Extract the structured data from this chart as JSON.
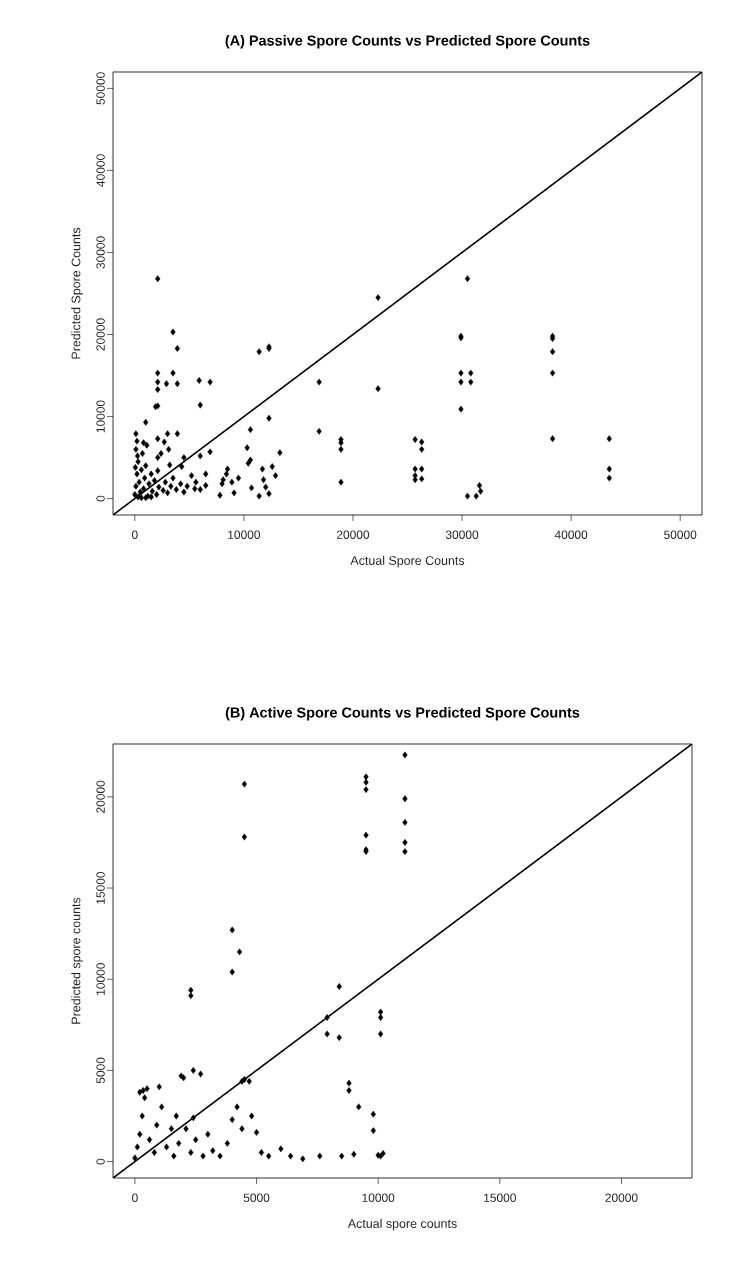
{
  "chart_data": [
    {
      "type": "scatter",
      "title": "(A) Passive Spore Counts vs Predicted Spore Counts",
      "xlabel": "Actual Spore Counts",
      "ylabel": "Predicted Spore Counts",
      "xlim": [
        -2000,
        52000
      ],
      "ylim": [
        -2000,
        52000
      ],
      "xticks": [
        0,
        10000,
        20000,
        30000,
        40000,
        50000
      ],
      "yticks": [
        0,
        10000,
        20000,
        30000,
        40000,
        50000
      ],
      "series": [
        {
          "marker": "diamond",
          "color": "#000000",
          "x": [
            2100,
            30500,
            22300,
            3500,
            3900,
            11400,
            12300,
            12300,
            29900,
            29900,
            38300,
            38300,
            38300,
            38300,
            38300,
            43500,
            43500,
            43500,
            29900,
            30800,
            29900,
            30800,
            29900,
            30500,
            31300,
            31600,
            31700,
            16900,
            16900,
            22300,
            18900,
            18900,
            18900,
            18900,
            25700,
            26300,
            26300,
            25700,
            26300,
            25700,
            26300,
            25700,
            12300,
            10600,
            10300,
            10600,
            10400,
            13300,
            11700,
            12600,
            11800,
            12900,
            12000,
            12300,
            11400,
            10700,
            6900,
            6000,
            6000,
            5900,
            6900,
            2100,
            3500,
            2100,
            2900,
            3900,
            2100,
            2100,
            1900,
            1000,
            100,
            2100,
            2700,
            3000,
            3900,
            3100,
            4500,
            2100,
            2100,
            3200,
            4300,
            6500,
            5600,
            6500,
            6000,
            8500,
            8400,
            8100,
            8900,
            8000,
            7800,
            9100,
            9500,
            0,
            100,
            200,
            300,
            100,
            200,
            400,
            500,
            600,
            700,
            800,
            900,
            1000,
            1100,
            1200,
            1300,
            1500,
            1600,
            1800,
            2000,
            2200,
            2400,
            2600,
            2800,
            3000,
            3300,
            3500,
            3800,
            4200,
            4500,
            4800,
            5200,
            5500,
            300,
            600,
            1000,
            1500,
            50,
            250,
            800
          ],
          "values": [
            26800,
            26800,
            24500,
            20300,
            18300,
            17900,
            18500,
            18300,
            19800,
            19600,
            19800,
            19500,
            17900,
            15300,
            7300,
            7300,
            3600,
            2500,
            15300,
            15300,
            14200,
            14200,
            10900,
            300,
            300,
            1600,
            900,
            14200,
            8200,
            13400,
            7200,
            6800,
            6000,
            2000,
            7200,
            6900,
            6000,
            3600,
            3600,
            2800,
            2400,
            2300,
            9800,
            8400,
            6200,
            4700,
            4300,
            5600,
            3600,
            3900,
            2300,
            2800,
            1400,
            600,
            300,
            1300,
            5700,
            5200,
            11400,
            14400,
            14200,
            15300,
            15300,
            14200,
            14000,
            14000,
            13300,
            11300,
            11200,
            9300,
            7900,
            7300,
            6900,
            7900,
            7900,
            6000,
            5000,
            5000,
            3400,
            4100,
            3900,
            3000,
            2000,
            1600,
            1100,
            3600,
            3000,
            2300,
            2000,
            1800,
            400,
            700,
            2500,
            500,
            1500,
            3000,
            4500,
            6000,
            7000,
            2000,
            800,
            3500,
            5500,
            1200,
            2500,
            4000,
            6500,
            300,
            1800,
            3000,
            900,
            2200,
            500,
            1400,
            5500,
            1000,
            2000,
            700,
            1500,
            2500,
            1100,
            1800,
            800,
            1500,
            2800,
            1200,
            200,
            100,
            100,
            200,
            3800,
            5200,
            6800
          ]
        },
        {
          "type": "line",
          "marker": "none",
          "color": "#000000",
          "x": [
            -2000,
            52000
          ],
          "values": [
            -2000,
            52000
          ]
        }
      ]
    },
    {
      "type": "scatter",
      "title": "(B) Active Spore Counts vs Predicted Spore Counts",
      "xlabel": "Actual spore counts",
      "ylabel": "Predicted spore counts",
      "xlim": [
        -900,
        22900
      ],
      "ylim": [
        -900,
        22900
      ],
      "xticks": [
        0,
        5000,
        10000,
        15000,
        20000
      ],
      "yticks": [
        0,
        5000,
        10000,
        15000,
        20000
      ],
      "series": [
        {
          "marker": "diamond",
          "color": "#000000",
          "x": [
            11100,
            11100,
            11100,
            11100,
            11100,
            9500,
            9500,
            9500,
            9500,
            9500,
            9500,
            4500,
            4500,
            4000,
            4300,
            4000,
            2300,
            2300,
            8400,
            7900,
            7900,
            8400,
            10100,
            10100,
            10100,
            8800,
            8800,
            340,
            1900,
            2400,
            4400,
            4700,
            0,
            100,
            200,
            300,
            400,
            500,
            200,
            600,
            800,
            900,
            1000,
            1100,
            1300,
            1500,
            1600,
            1700,
            1800,
            2000,
            2100,
            2300,
            2400,
            2500,
            2700,
            2800,
            3000,
            3200,
            3500,
            3800,
            4000,
            4200,
            4400,
            4500,
            4800,
            5000,
            5200,
            5500,
            6000,
            6400,
            6900,
            7600,
            8500,
            9000,
            9200,
            9800,
            9800,
            10000,
            10200,
            10100
          ],
          "values": [
            22300,
            19900,
            18600,
            17500,
            17000,
            21100,
            20800,
            20400,
            17900,
            17100,
            17000,
            20700,
            17800,
            12700,
            11500,
            10400,
            9400,
            9100,
            9600,
            7900,
            7000,
            6800,
            8200,
            7900,
            7000,
            4300,
            3900,
            3900,
            4700,
            5000,
            4400,
            4400,
            200,
            800,
            1500,
            2500,
            3500,
            4000,
            3800,
            1200,
            500,
            2000,
            4100,
            3000,
            800,
            1800,
            300,
            2500,
            1000,
            4600,
            1800,
            500,
            2400,
            1200,
            4800,
            300,
            1500,
            600,
            300,
            1000,
            2300,
            3000,
            1800,
            4500,
            2500,
            1600,
            500,
            300,
            700,
            300,
            150,
            300,
            300,
            400,
            3000,
            2600,
            1700,
            350,
            450,
            300
          ]
        },
        {
          "type": "line",
          "marker": "none",
          "color": "#000000",
          "x": [
            -900,
            22900
          ],
          "values": [
            -900,
            22900
          ]
        }
      ]
    }
  ]
}
